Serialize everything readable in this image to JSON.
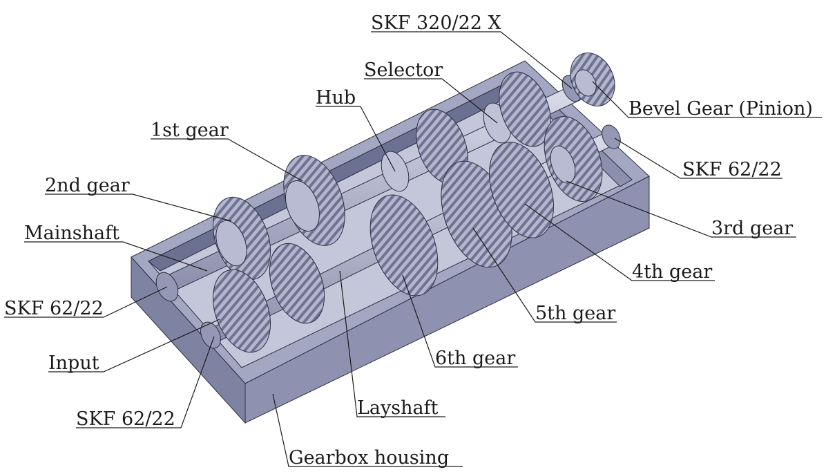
{
  "labels": {
    "skf_320": "SKF 320/22 X",
    "selector": "Selector",
    "hub": "Hub",
    "bevel_gear": "Bevel Gear (Pinion)",
    "first_gear": "1st gear",
    "second_gear": "2nd gear",
    "skf_62_right": "SKF 62/22",
    "third_gear": "3rd gear",
    "mainshaft": "Mainshaft",
    "fourth_gear": "4th gear",
    "skf_62_left": "SKF 62/22",
    "fifth_gear": "5th gear",
    "input": "Input",
    "sixth_gear": "6th gear",
    "layshaft": "Layshaft",
    "skf_62_bottom": "SKF 62/22",
    "gearbox_housing": "Gearbox housing"
  },
  "colors": {
    "housing_top": "#a3a7c2",
    "housing_front": "#8e92b0",
    "housing_side": "#7f83a2",
    "housing_inner": "#c4c7da",
    "gear_face": "#b8bbd1",
    "gear_teeth": "#8a8eab",
    "shaft": "#c7cadb"
  }
}
